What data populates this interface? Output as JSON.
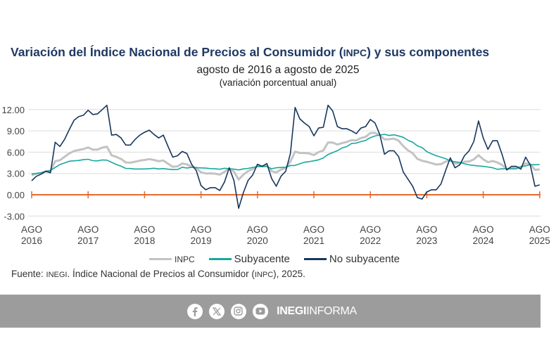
{
  "title": {
    "prefix": "Variación del Índice Nacional de Precios al Consumidor (",
    "acronym": "INPC",
    "suffix": ") y sus componentes"
  },
  "subtitle": "agosto de 2016 a agosto de 2025",
  "subtitle2": "(variación porcentual anual)",
  "legend": {
    "inpc": "INPC",
    "sub": "Subyacente",
    "nosub": "No subyacente"
  },
  "source": {
    "prefix": "Fuente: ",
    "org": "INEGI",
    "mid": ". Índice Nacional de Precios al Consumidor (",
    "acr": "INPC",
    "end": "), 2025."
  },
  "footer": {
    "brand_bold": "INEGI",
    "brand_light": "INFORMA",
    "icons": [
      "facebook-icon",
      "x-icon",
      "instagram-icon",
      "youtube-icon"
    ]
  },
  "colors": {
    "inpc": "#c3c3c3",
    "sub": "#17a8a0",
    "nosub": "#17365d",
    "zero": "#e3692d",
    "title": "#1f3864",
    "band": "#9c9c9c"
  },
  "chart_data": {
    "type": "line",
    "title": "Variación del Índice Nacional de Precios al Consumidor (INPC) y sus componentes",
    "ylabel": "variación porcentual anual",
    "ylim": [
      -3,
      12
    ],
    "yticks": [
      "-3.00",
      "0.00",
      "3.00",
      "6.00",
      "9.00",
      "12.00"
    ],
    "yvalues": [
      -3,
      0,
      3,
      6,
      9,
      12
    ],
    "xticks": [
      [
        "AGO",
        "2016"
      ],
      [
        "AGO",
        "2017"
      ],
      [
        "AGO",
        "2018"
      ],
      [
        "AGO",
        "2019"
      ],
      [
        "AGO",
        "2020"
      ],
      [
        "AGO",
        "2021"
      ],
      [
        "AGO",
        "2022"
      ],
      [
        "AGO",
        "2023"
      ],
      [
        "AGO",
        "2024"
      ],
      [
        "AGO",
        "2025"
      ]
    ],
    "x_start": "2016-08",
    "frequency": "monthly",
    "grid": true,
    "legend_position": "bottom",
    "series": [
      {
        "name": "INPC",
        "key": "inpc",
        "values": [
          2.73,
          2.97,
          3.06,
          3.31,
          3.36,
          4.72,
          4.86,
          5.35,
          5.82,
          6.16,
          6.31,
          6.44,
          6.66,
          6.35,
          6.37,
          6.63,
          6.77,
          5.55,
          5.34,
          5.04,
          4.55,
          4.51,
          4.65,
          4.81,
          4.9,
          5.02,
          4.9,
          4.72,
          4.83,
          4.37,
          3.94,
          4.0,
          4.41,
          4.28,
          3.95,
          3.78,
          3.16,
          3.0,
          3.02,
          2.97,
          2.83,
          3.24,
          3.7,
          3.25,
          2.15,
          2.84,
          3.33,
          3.62,
          4.05,
          4.01,
          4.09,
          3.33,
          3.15,
          3.54,
          3.76,
          4.67,
          6.08,
          5.89,
          5.88,
          5.81,
          5.59,
          6.0,
          6.24,
          7.37,
          7.36,
          7.07,
          7.28,
          7.45,
          7.68,
          7.65,
          7.99,
          8.15,
          8.7,
          8.7,
          8.41,
          7.8,
          7.82,
          7.91,
          7.62,
          6.85,
          6.25,
          5.84,
          5.06,
          4.79,
          4.64,
          4.45,
          4.26,
          4.32,
          4.66,
          4.88,
          4.4,
          4.42,
          4.65,
          4.69,
          4.98,
          5.57,
          4.99,
          4.58,
          4.76,
          4.55,
          4.21,
          3.59,
          3.77,
          3.8,
          3.93,
          4.42,
          4.32,
          3.51,
          3.57
        ]
      },
      {
        "name": "Subyacente",
        "key": "sub",
        "values": [
          2.94,
          3.0,
          3.1,
          3.29,
          3.44,
          3.84,
          4.26,
          4.48,
          4.72,
          4.78,
          4.83,
          4.94,
          5.0,
          4.8,
          4.77,
          4.9,
          4.87,
          4.56,
          4.27,
          4.02,
          3.71,
          3.69,
          3.62,
          3.63,
          3.63,
          3.67,
          3.73,
          3.63,
          3.68,
          3.6,
          3.54,
          3.55,
          3.87,
          3.77,
          3.85,
          3.82,
          3.78,
          3.75,
          3.68,
          3.65,
          3.59,
          3.73,
          3.66,
          3.6,
          3.5,
          3.64,
          3.71,
          3.85,
          3.97,
          3.99,
          3.98,
          3.66,
          3.8,
          3.84,
          3.87,
          4.12,
          4.13,
          4.37,
          4.58,
          4.66,
          4.78,
          4.92,
          5.19,
          5.67,
          5.94,
          6.21,
          6.59,
          6.78,
          7.22,
          7.28,
          7.49,
          7.65,
          8.05,
          8.28,
          8.42,
          8.51,
          8.35,
          8.45,
          8.29,
          8.09,
          7.67,
          7.39,
          6.89,
          6.64,
          6.08,
          5.76,
          5.5,
          5.3,
          5.09,
          4.76,
          4.64,
          4.55,
          4.37,
          4.21,
          4.13,
          4.05,
          4.0,
          3.91,
          3.8,
          3.58,
          3.65,
          3.66,
          3.65,
          3.64,
          3.93,
          4.06,
          4.24,
          4.23,
          4.26
        ]
      },
      {
        "name": "No subyacente",
        "key": "nosub",
        "values": [
          1.98,
          2.6,
          2.9,
          3.3,
          3.1,
          7.4,
          6.8,
          7.8,
          9.2,
          10.5,
          11.0,
          11.2,
          11.9,
          11.3,
          11.4,
          12.0,
          12.6,
          8.4,
          8.5,
          8.0,
          7.0,
          7.0,
          7.8,
          8.4,
          8.8,
          9.1,
          8.5,
          8.0,
          8.4,
          6.8,
          5.3,
          5.5,
          6.1,
          5.8,
          4.3,
          3.4,
          1.3,
          0.7,
          1.0,
          1.0,
          0.6,
          1.8,
          3.8,
          2.0,
          -1.9,
          0.3,
          2.0,
          2.8,
          4.3,
          4.0,
          4.4,
          2.3,
          1.2,
          2.6,
          3.3,
          5.8,
          12.3,
          10.7,
          10.1,
          9.6,
          8.3,
          9.4,
          9.5,
          12.6,
          11.8,
          9.6,
          9.3,
          9.3,
          9.0,
          8.6,
          9.4,
          9.6,
          10.6,
          10.1,
          8.5,
          5.7,
          6.2,
          6.2,
          5.4,
          3.2,
          2.2,
          1.2,
          -0.4,
          -0.6,
          0.4,
          0.7,
          0.7,
          1.5,
          3.4,
          5.2,
          3.8,
          4.2,
          5.5,
          6.2,
          7.5,
          10.4,
          8.0,
          6.4,
          7.6,
          7.6,
          5.7,
          3.5,
          4.0,
          4.0,
          3.6,
          5.3,
          4.2,
          1.2,
          1.4
        ]
      }
    ]
  }
}
